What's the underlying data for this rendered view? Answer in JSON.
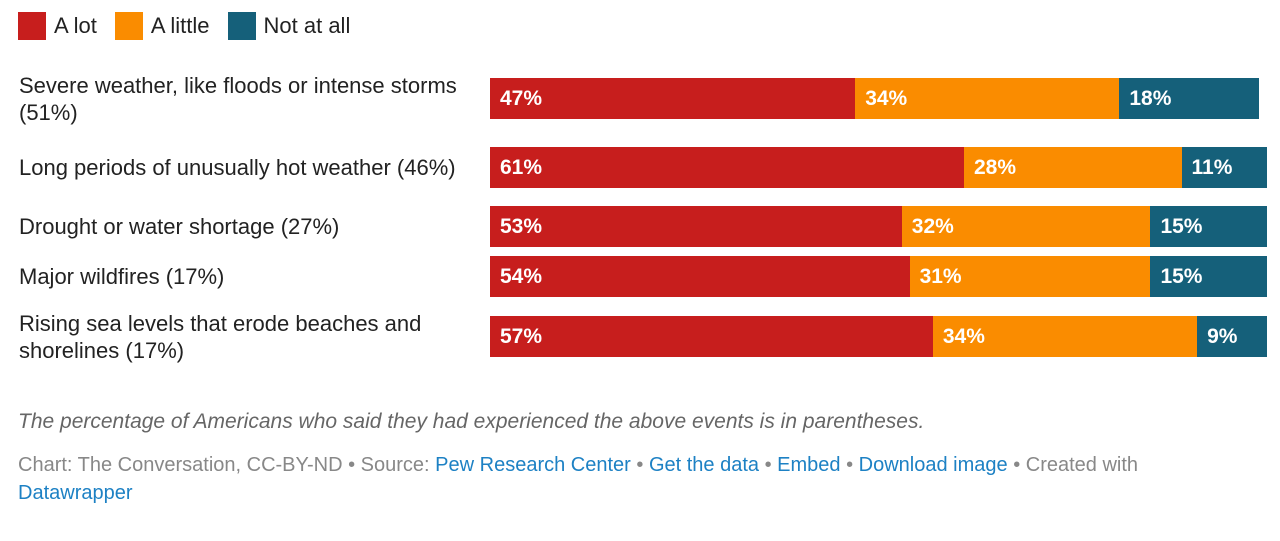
{
  "chart_data": {
    "type": "bar",
    "orientation": "horizontal",
    "stacked": true,
    "categories": [
      "Severe weather, like floods or intense storms (51%)",
      "Long periods of unusually hot weather (46%)",
      "Drought or water shortage (27%)",
      "Major wildfires (17%)",
      "Rising sea levels that erode beaches and shorelines (17%)"
    ],
    "series": [
      {
        "name": "A lot",
        "color": "#c71e1d",
        "values": [
          47,
          61,
          53,
          54,
          57
        ]
      },
      {
        "name": "A little",
        "color": "#fa8c00",
        "values": [
          34,
          28,
          32,
          31,
          34
        ]
      },
      {
        "name": "Not at all",
        "color": "#15607a",
        "values": [
          18,
          11,
          15,
          15,
          9
        ]
      }
    ],
    "value_suffix": "%",
    "legend": "top-left",
    "xlim": [
      0,
      100
    ]
  },
  "notes": "The percentage of Americans who said they had experienced the above events is in parentheses.",
  "footer": {
    "chart_credit": "Chart: The Conversation, CC-BY-ND • Source: ",
    "source_link": "Pew Research Center",
    "sep1": " • ",
    "get_data": "Get the data",
    "sep2": " • ",
    "embed": "Embed",
    "sep3": "  • ",
    "download": "Download image",
    "created": " • Created with ",
    "datawrapper": "Datawrapper"
  }
}
